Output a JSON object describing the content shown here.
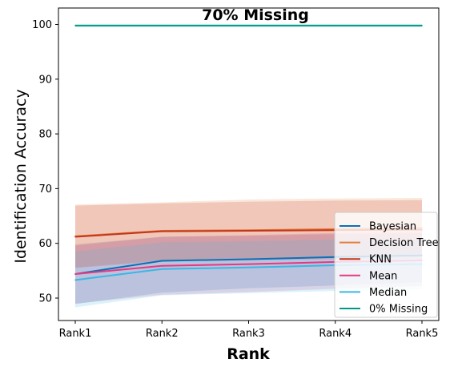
{
  "chart_data": {
    "type": "line",
    "title": "70% Missing",
    "xlabel": "Rank",
    "ylabel": "Identification Accuracy",
    "categories": [
      "Rank1",
      "Rank2",
      "Rank3",
      "Rank4",
      "Rank5"
    ],
    "ylim": [
      45.9,
      103.0
    ],
    "yticks": [
      50,
      60,
      70,
      80,
      90,
      100
    ],
    "grid": false,
    "legend_position": "lower-right",
    "series": [
      {
        "name": "Bayesian",
        "color": "#0e6fb6",
        "values": [
          54.4,
          56.8,
          57.1,
          57.5,
          57.8
        ],
        "band": {
          "lower": [
            48.9,
            51.0,
            51.8,
            52.3,
            52.9
          ],
          "upper": [
            59.8,
            61.2,
            61.4,
            61.7,
            61.9
          ]
        }
      },
      {
        "name": "Decision Tree",
        "color": "#e57c3a",
        "values": [
          61.3,
          62.3,
          62.4,
          62.6,
          62.8
        ],
        "band": {
          "lower": [
            55.6,
            56.9,
            57.1,
            57.3,
            57.6
          ],
          "upper": [
            67.1,
            67.5,
            68.0,
            68.2,
            68.3
          ]
        }
      },
      {
        "name": "KNN",
        "color": "#c1361b",
        "values": [
          61.2,
          62.2,
          62.3,
          62.4,
          62.5
        ],
        "band": {
          "lower": [
            55.5,
            56.7,
            56.9,
            57.1,
            57.3
          ],
          "upper": [
            66.9,
            67.3,
            67.6,
            67.8,
            67.9
          ]
        }
      },
      {
        "name": "Mean",
        "color": "#e6397f",
        "values": [
          54.4,
          55.9,
          56.2,
          56.6,
          56.9
        ],
        "band": {
          "lower": [
            49.0,
            50.6,
            51.1,
            51.7,
            52.2
          ],
          "upper": [
            59.6,
            61.2,
            61.5,
            61.9,
            62.2
          ]
        }
      },
      {
        "name": "Median",
        "color": "#3cb6e3",
        "values": [
          53.3,
          55.3,
          55.6,
          56.0,
          56.2
        ],
        "band": {
          "lower": [
            48.3,
            50.5,
            50.9,
            51.3,
            51.6
          ],
          "upper": [
            58.5,
            60.2,
            60.4,
            60.7,
            60.9
          ]
        }
      },
      {
        "name": "0% Missing",
        "color": "#009988",
        "values": [
          99.8,
          99.8,
          99.8,
          99.8,
          99.8
        ],
        "band": {
          "lower": [
            99.5,
            99.5,
            99.5,
            99.5,
            99.5
          ],
          "upper": [
            100.0,
            100.0,
            100.0,
            100.0,
            100.0
          ]
        }
      }
    ]
  }
}
